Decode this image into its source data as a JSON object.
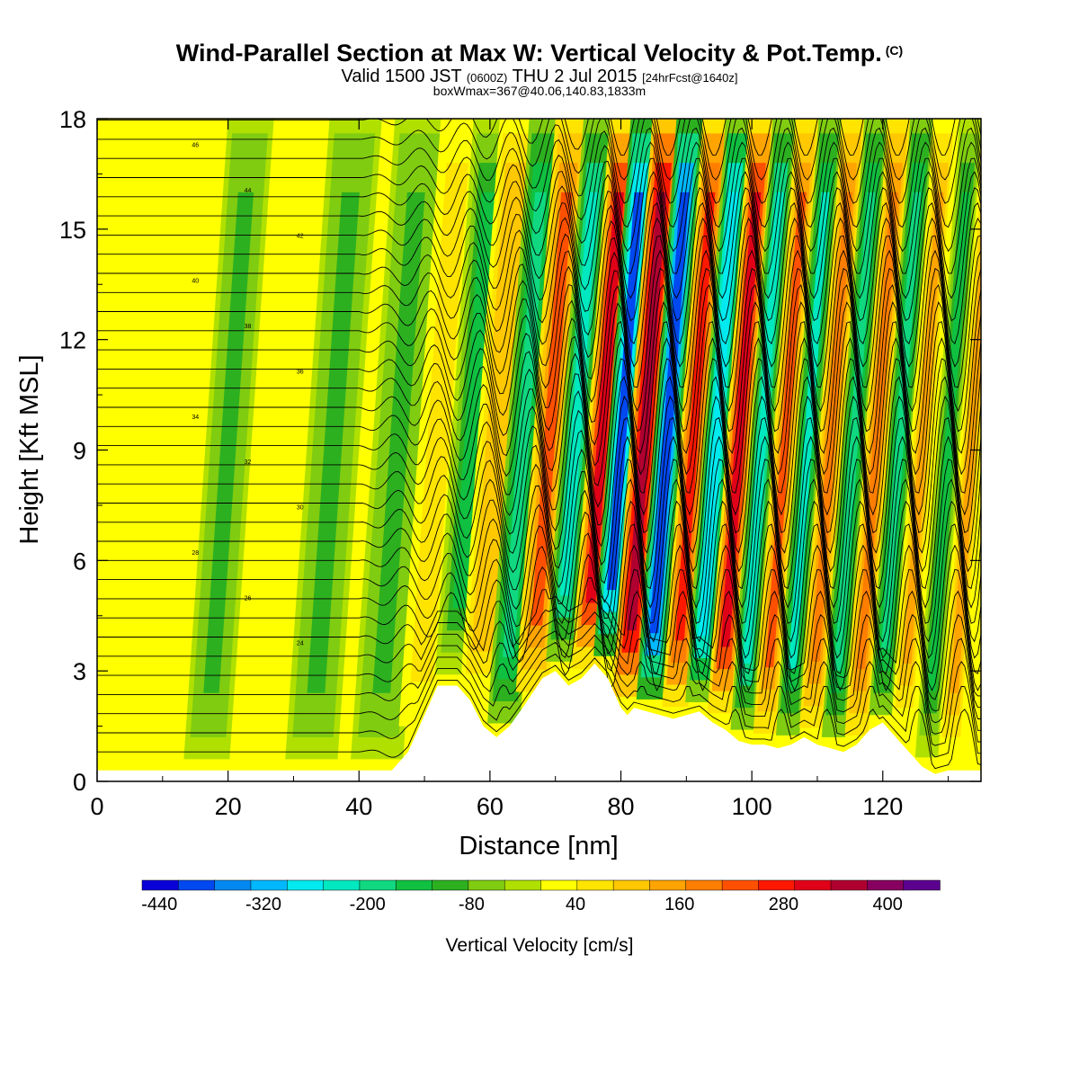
{
  "header": {
    "title": "Wind-Parallel Section at Max W: Vertical Velocity & Pot.Temp.",
    "copyright": "(C)",
    "valid_main": "Valid 1500 JST",
    "valid_z": "(0600Z)",
    "valid_date": "THU 2 Jul 2015",
    "valid_fcst": "[24hrFcst@1640z]",
    "box_info": "boxWmax=367@40.06,140.83,1833m"
  },
  "chart_data": {
    "type": "heatmap",
    "xlabel": "Distance [nm]",
    "ylabel": "Height [Kft MSL]",
    "xlim": [
      0,
      135
    ],
    "ylim": [
      0,
      18
    ],
    "x_ticks": [
      0,
      20,
      40,
      60,
      80,
      100,
      120
    ],
    "y_ticks": [
      0,
      3,
      6,
      9,
      12,
      15,
      18
    ],
    "colorbar": {
      "label": "Vertical Velocity [cm/s]",
      "tick_labels": [
        "-440",
        "-320",
        "-200",
        "-80",
        "40",
        "160",
        "280",
        "400"
      ],
      "tick_values": [
        -440,
        -320,
        -200,
        -80,
        40,
        160,
        280,
        400
      ],
      "min": -460,
      "max": 460,
      "colors": [
        "#0a00d8",
        "#0048f0",
        "#0088f0",
        "#00b8ff",
        "#00eaf0",
        "#00e8c0",
        "#10d880",
        "#10c040",
        "#2cb020",
        "#80cc10",
        "#b0e000",
        "#ffff00",
        "#ffe400",
        "#ffc800",
        "#ffa400",
        "#ff7e00",
        "#ff5000",
        "#ff1800",
        "#e00018",
        "#b00030",
        "#880060",
        "#5c0090"
      ]
    },
    "terrain": {
      "x": [
        0,
        45,
        47.5,
        50,
        52,
        55,
        57,
        59,
        61,
        63,
        65,
        68,
        70,
        72,
        74,
        76,
        78,
        80,
        81,
        82,
        84,
        86,
        88,
        90,
        92,
        94,
        96,
        98,
        100,
        102,
        104,
        106,
        108,
        110,
        112,
        114,
        116,
        118,
        120,
        122,
        124,
        126,
        128,
        130,
        132,
        135
      ],
      "y": [
        0.3,
        0.3,
        0.8,
        1.8,
        2.6,
        2.6,
        2.2,
        1.5,
        1.2,
        1.5,
        2.0,
        2.8,
        3.0,
        2.6,
        2.8,
        3.2,
        2.8,
        2.0,
        1.8,
        2.0,
        1.9,
        1.8,
        1.7,
        1.8,
        1.9,
        1.6,
        1.4,
        1.1,
        1.0,
        1.0,
        0.9,
        1.0,
        1.2,
        1.0,
        0.9,
        0.8,
        1.0,
        1.4,
        1.6,
        1.2,
        0.8,
        0.4,
        0.2,
        0.3,
        0.3,
        0.3
      ]
    },
    "potential_temperature_contour_labels": [
      "46",
      "44",
      "42",
      "40",
      "38",
      "36",
      "34",
      "32",
      "30",
      "28",
      "26",
      "24"
    ],
    "vertical_velocity_bands": [
      {
        "x": 20,
        "w": 3.5,
        "v": -110
      },
      {
        "x": 36,
        "w": 4,
        "v": -90
      },
      {
        "x": 46,
        "w": 4,
        "v": -100
      },
      {
        "x": 52,
        "w": 3,
        "v": 80
      },
      {
        "x": 57,
        "w": 3,
        "v": -160
      },
      {
        "x": 61,
        "w": 3,
        "v": 120
      },
      {
        "x": 65,
        "w": 2.5,
        "v": -180
      },
      {
        "x": 69,
        "w": 2.5,
        "v": 220
      },
      {
        "x": 73,
        "w": 2.2,
        "v": -240
      },
      {
        "x": 77,
        "w": 2.2,
        "v": 330
      },
      {
        "x": 80,
        "w": 2.0,
        "v": -380
      },
      {
        "x": 83.5,
        "w": 2.2,
        "v": 360
      },
      {
        "x": 87,
        "w": 2.0,
        "v": -400
      },
      {
        "x": 91,
        "w": 2.0,
        "v": 260
      },
      {
        "x": 94.5,
        "w": 2.0,
        "v": -280
      },
      {
        "x": 98,
        "w": 2.0,
        "v": 330
      },
      {
        "x": 101.5,
        "w": 1.8,
        "v": -230
      },
      {
        "x": 105,
        "w": 1.8,
        "v": 220
      },
      {
        "x": 108.5,
        "w": 1.8,
        "v": -220
      },
      {
        "x": 112,
        "w": 1.8,
        "v": 190
      },
      {
        "x": 115.5,
        "w": 1.8,
        "v": -190
      },
      {
        "x": 119,
        "w": 1.8,
        "v": 180
      },
      {
        "x": 122.5,
        "w": 1.8,
        "v": -170
      },
      {
        "x": 126,
        "w": 1.8,
        "v": 150
      },
      {
        "x": 130,
        "w": 1.8,
        "v": -150
      },
      {
        "x": 133.5,
        "w": 1.8,
        "v": 130
      }
    ]
  }
}
